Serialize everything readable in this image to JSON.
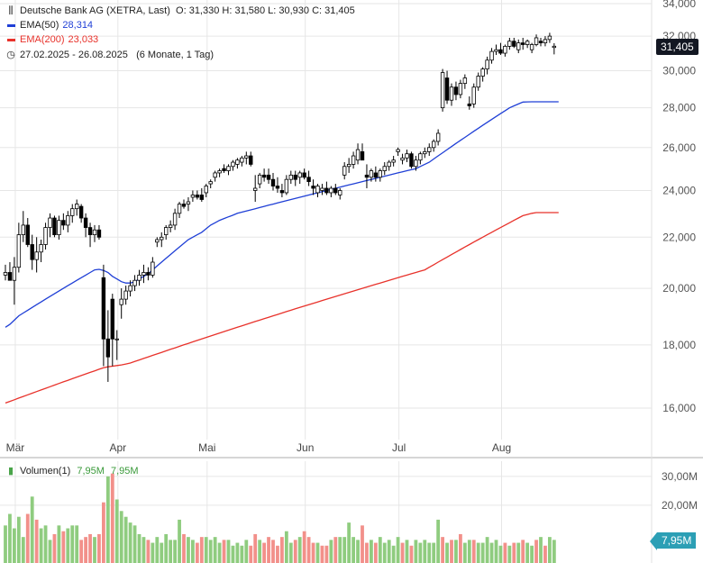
{
  "header": {
    "title": "Deutsche Bank AG (XETRA, Last)",
    "ohlc": "O: 31,330   H: 31,580   L: 30,930   C: 31,405",
    "ema50_label": "EMA(50)",
    "ema50_value": "28,314",
    "ema200_label": "EMA(200)",
    "ema200_value": "23,033",
    "range": "27.02.2025 - 26.08.2025",
    "range_note": "(6 Monate, 1 Tag)"
  },
  "volume_legend": {
    "label": "Volumen(1)",
    "value1": "7,95M",
    "value2": "7,95M"
  },
  "price_tag": "31,405",
  "volume_tag": "7,95M",
  "colors": {
    "ema50": "#1f3fd6",
    "ema200": "#e8322b",
    "vol_up": "#8fcc7f",
    "vol_down": "#f2908a",
    "candle": "#000000",
    "grid": "#e6e6e6"
  },
  "chart_data": {
    "type": "candlestick",
    "scale": "log",
    "price_ticks": [
      16000,
      18000,
      20000,
      22000,
      24000,
      26000,
      28000,
      30000,
      32000,
      34000
    ],
    "price_tick_labels": [
      "16,000",
      "18,000",
      "20,000",
      "22,000",
      "24,000",
      "26,000",
      "28,000",
      "30,000",
      "32,000",
      "34,000"
    ],
    "volume_ticks": [
      20,
      30
    ],
    "volume_tick_labels": [
      "20,00M",
      "30,00M"
    ],
    "months": [
      {
        "label": "Mär",
        "index": 1
      },
      {
        "label": "Apr",
        "index": 24
      },
      {
        "label": "Mai",
        "index": 44
      },
      {
        "label": "Jun",
        "index": 66
      },
      {
        "label": "Jul",
        "index": 87
      },
      {
        "label": "Aug",
        "index": 110
      }
    ],
    "candles": [
      [
        20.5,
        20.9,
        20.3,
        20.6
      ],
      [
        20.6,
        21.0,
        20.4,
        20.3
      ],
      [
        20.3,
        21.2,
        19.4,
        20.8
      ],
      [
        20.8,
        22.6,
        20.6,
        22.1
      ],
      [
        22.1,
        23.1,
        21.8,
        22.5
      ],
      [
        22.5,
        22.8,
        21.6,
        21.7
      ],
      [
        21.7,
        22.1,
        20.7,
        21.1
      ],
      [
        21.1,
        22.0,
        20.6,
        21.4
      ],
      [
        21.4,
        21.9,
        21.0,
        21.7
      ],
      [
        21.7,
        22.6,
        21.5,
        22.4
      ],
      [
        22.4,
        23.0,
        22.0,
        22.8
      ],
      [
        22.8,
        22.9,
        22.0,
        22.1
      ],
      [
        22.1,
        22.9,
        21.9,
        22.7
      ],
      [
        22.7,
        23.0,
        22.3,
        22.5
      ],
      [
        22.5,
        23.1,
        22.2,
        22.9
      ],
      [
        22.9,
        23.4,
        22.6,
        23.2
      ],
      [
        23.2,
        23.6,
        22.9,
        23.4
      ],
      [
        23.3,
        23.4,
        22.6,
        22.8
      ],
      [
        22.8,
        23.0,
        22.0,
        22.4
      ],
      [
        22.4,
        22.6,
        21.6,
        22.1
      ],
      [
        22.1,
        22.5,
        21.8,
        22.3
      ],
      [
        22.3,
        22.5,
        21.9,
        22.0
      ],
      [
        20.4,
        20.9,
        17.3,
        18.2
      ],
      [
        18.2,
        19.2,
        16.8,
        17.6
      ],
      [
        19.6,
        19.8,
        17.3,
        18.2
      ],
      [
        18.2,
        18.5,
        17.5,
        18.2
      ],
      [
        19.4,
        20.0,
        18.9,
        19.6
      ],
      [
        19.6,
        20.1,
        19.4,
        19.9
      ],
      [
        19.9,
        20.3,
        19.7,
        20.1
      ],
      [
        20.1,
        20.5,
        19.9,
        20.3
      ],
      [
        20.3,
        20.7,
        20.1,
        20.5
      ],
      [
        20.5,
        20.9,
        20.2,
        20.6
      ],
      [
        20.6,
        20.8,
        20.3,
        20.5
      ],
      [
        20.5,
        21.2,
        20.4,
        21.0
      ],
      [
        21.8,
        22.0,
        21.6,
        21.9
      ],
      [
        21.9,
        22.2,
        21.6,
        22.0
      ],
      [
        22.1,
        22.5,
        21.9,
        22.4
      ],
      [
        22.4,
        22.7,
        22.2,
        22.5
      ],
      [
        22.5,
        23.2,
        22.3,
        23.0
      ],
      [
        23.0,
        23.5,
        22.8,
        23.4
      ],
      [
        23.4,
        23.6,
        23.2,
        23.3
      ],
      [
        23.4,
        23.7,
        23.1,
        23.5
      ],
      [
        23.7,
        24.0,
        23.5,
        23.8
      ],
      [
        23.8,
        24.0,
        23.6,
        23.7
      ],
      [
        23.8,
        24.1,
        23.5,
        23.6
      ],
      [
        23.9,
        24.3,
        23.7,
        24.2
      ],
      [
        24.3,
        24.5,
        24.1,
        24.4
      ],
      [
        24.6,
        24.9,
        24.4,
        24.8
      ],
      [
        24.8,
        25.0,
        24.6,
        24.9
      ],
      [
        25.0,
        25.2,
        24.8,
        24.9
      ],
      [
        24.9,
        25.2,
        24.7,
        25.1
      ],
      [
        25.1,
        25.4,
        24.9,
        25.3
      ],
      [
        25.2,
        25.5,
        25.0,
        25.4
      ],
      [
        25.3,
        25.6,
        25.1,
        25.5
      ],
      [
        25.5,
        25.8,
        25.2,
        25.6
      ],
      [
        25.6,
        25.8,
        25.1,
        25.2
      ],
      [
        24.0,
        24.7,
        23.5,
        24.1
      ],
      [
        24.3,
        24.8,
        24.1,
        24.7
      ],
      [
        24.7,
        25.0,
        24.4,
        24.6
      ],
      [
        24.7,
        25.0,
        24.3,
        24.5
      ],
      [
        24.5,
        24.8,
        24.0,
        24.2
      ],
      [
        24.2,
        24.6,
        23.9,
        24.1
      ],
      [
        24.0,
        24.3,
        23.7,
        23.9
      ],
      [
        23.9,
        24.7,
        23.8,
        24.5
      ],
      [
        24.5,
        24.9,
        24.3,
        24.7
      ],
      [
        24.7,
        24.9,
        24.2,
        24.5
      ],
      [
        24.6,
        24.9,
        24.3,
        24.8
      ],
      [
        24.8,
        25.0,
        24.5,
        24.6
      ],
      [
        24.6,
        24.9,
        24.2,
        24.4
      ],
      [
        24.2,
        24.5,
        23.8,
        24.1
      ],
      [
        23.9,
        24.3,
        23.7,
        24.2
      ],
      [
        24.0,
        24.3,
        23.8,
        24.1
      ],
      [
        24.1,
        24.4,
        23.8,
        23.9
      ],
      [
        23.9,
        24.2,
        23.7,
        24.1
      ],
      [
        24.1,
        24.3,
        23.8,
        23.9
      ],
      [
        23.8,
        24.1,
        23.6,
        24.0
      ],
      [
        24.7,
        25.3,
        24.5,
        25.1
      ],
      [
        25.1,
        25.5,
        24.8,
        25.2
      ],
      [
        25.2,
        25.8,
        25.0,
        25.6
      ],
      [
        25.4,
        26.2,
        25.2,
        25.9
      ],
      [
        25.8,
        26.2,
        25.4,
        25.4
      ],
      [
        24.7,
        25.2,
        24.1,
        24.6
      ],
      [
        24.6,
        25.0,
        24.4,
        24.9
      ],
      [
        24.8,
        25.1,
        24.4,
        24.6
      ],
      [
        24.6,
        25.0,
        24.4,
        24.9
      ],
      [
        24.9,
        25.3,
        24.7,
        25.1
      ],
      [
        25.1,
        25.4,
        24.9,
        25.3
      ],
      [
        25.3,
        25.6,
        25.1,
        25.4
      ],
      [
        25.8,
        26.0,
        25.6,
        25.9
      ],
      [
        25.4,
        25.7,
        25.2,
        25.5
      ],
      [
        25.5,
        25.9,
        25.3,
        25.7
      ],
      [
        25.7,
        25.8,
        25.0,
        25.1
      ],
      [
        25.1,
        25.6,
        24.9,
        25.4
      ],
      [
        25.4,
        25.8,
        25.2,
        25.7
      ],
      [
        25.7,
        26.0,
        25.5,
        25.8
      ],
      [
        25.8,
        26.2,
        25.6,
        26.0
      ],
      [
        26.0,
        26.4,
        25.8,
        26.3
      ],
      [
        26.3,
        26.9,
        26.1,
        26.7
      ],
      [
        28.0,
        30.1,
        27.8,
        29.9
      ],
      [
        29.6,
        30.0,
        28.2,
        28.4
      ],
      [
        28.4,
        29.3,
        28.1,
        29.1
      ],
      [
        29.1,
        29.4,
        28.4,
        28.7
      ],
      [
        28.7,
        29.5,
        28.5,
        29.3
      ],
      [
        29.3,
        29.8,
        29.0,
        29.6
      ],
      [
        28.2,
        28.6,
        27.9,
        28.1
      ],
      [
        28.2,
        29.3,
        28.0,
        29.1
      ],
      [
        29.1,
        29.9,
        28.9,
        29.7
      ],
      [
        29.7,
        30.2,
        29.4,
        30.1
      ],
      [
        30.1,
        30.8,
        29.8,
        30.6
      ],
      [
        30.6,
        31.3,
        30.4,
        31.1
      ],
      [
        31.1,
        31.5,
        30.9,
        31.2
      ],
      [
        31.2,
        31.6,
        30.9,
        31.0
      ],
      [
        31.0,
        31.5,
        30.8,
        31.4
      ],
      [
        31.4,
        31.9,
        31.2,
        31.7
      ],
      [
        31.7,
        31.9,
        31.3,
        31.4
      ],
      [
        31.2,
        31.8,
        31.0,
        31.6
      ],
      [
        31.6,
        31.9,
        31.2,
        31.5
      ],
      [
        31.5,
        31.8,
        31.3,
        31.7
      ],
      [
        31.2,
        31.6,
        31.0,
        31.5
      ],
      [
        31.5,
        32.1,
        31.4,
        31.9
      ],
      [
        31.7,
        31.9,
        31.4,
        31.6
      ],
      [
        31.6,
        32.0,
        31.4,
        31.8
      ],
      [
        31.8,
        32.2,
        31.6,
        32.0
      ],
      [
        31.33,
        31.58,
        30.93,
        31.405
      ]
    ],
    "volumes": [
      13,
      17,
      12,
      16,
      9,
      17,
      23,
      15,
      12,
      13,
      8,
      10,
      13,
      11,
      12,
      13,
      13,
      8,
      9,
      10,
      9,
      10,
      21,
      30,
      31,
      22,
      18,
      16,
      14,
      13,
      10,
      9,
      8,
      7,
      9,
      7,
      10,
      8,
      8,
      15,
      10,
      9,
      8,
      7,
      9,
      9,
      8,
      9,
      7,
      8,
      8,
      6,
      7,
      6,
      8,
      6,
      10,
      8,
      7,
      9,
      8,
      6,
      9,
      11,
      7,
      8,
      9,
      11,
      9,
      7,
      7,
      6,
      6,
      8,
      9,
      9,
      9,
      14,
      9,
      8,
      13,
      7,
      8,
      7,
      9,
      7,
      8,
      6,
      9,
      7,
      8,
      6,
      8,
      7,
      8,
      7,
      7,
      15,
      9,
      7,
      8,
      8,
      10,
      7,
      8,
      8,
      7,
      7,
      9,
      7,
      8,
      6,
      7,
      6,
      7,
      7,
      8,
      7,
      6,
      8,
      9,
      6,
      9,
      8
    ],
    "volume_up": [
      1,
      1,
      1,
      1,
      1,
      0,
      1,
      0,
      1,
      1,
      1,
      0,
      1,
      0,
      1,
      1,
      1,
      0,
      0,
      0,
      1,
      0,
      0,
      1,
      0,
      1,
      1,
      1,
      1,
      1,
      1,
      1,
      0,
      1,
      1,
      1,
      1,
      1,
      1,
      1,
      0,
      1,
      1,
      0,
      0,
      1,
      1,
      1,
      1,
      0,
      1,
      1,
      1,
      1,
      1,
      0,
      0,
      1,
      0,
      0,
      0,
      0,
      0,
      1,
      1,
      0,
      1,
      0,
      0,
      0,
      1,
      0,
      0,
      1,
      0,
      1,
      1,
      1,
      1,
      1,
      0,
      0,
      1,
      0,
      1,
      1,
      1,
      1,
      1,
      0,
      1,
      0,
      1,
      1,
      1,
      1,
      1,
      1,
      0,
      1,
      0,
      1,
      0,
      1,
      1,
      0,
      1,
      1,
      1,
      1,
      1,
      1,
      0,
      1,
      0,
      1,
      0,
      1,
      1,
      0,
      1,
      0,
      1,
      1
    ],
    "ema50": [
      18.6,
      18.7,
      18.85,
      19.0,
      19.1,
      19.2,
      19.3,
      19.4,
      19.5,
      19.6,
      19.7,
      19.8,
      19.9,
      20.0,
      20.1,
      20.2,
      20.3,
      20.4,
      20.5,
      20.6,
      20.7,
      20.72,
      20.68,
      20.6,
      20.45,
      20.35,
      20.25,
      20.2,
      20.2,
      20.25,
      20.35,
      20.45,
      20.55,
      20.7,
      20.85,
      21.0,
      21.15,
      21.3,
      21.45,
      21.6,
      21.75,
      21.9,
      22.0,
      22.1,
      22.2,
      22.35,
      22.5,
      22.6,
      22.7,
      22.78,
      22.85,
      22.92,
      23.0,
      23.05,
      23.1,
      23.15,
      23.2,
      23.25,
      23.3,
      23.35,
      23.4,
      23.45,
      23.5,
      23.55,
      23.6,
      23.65,
      23.7,
      23.75,
      23.8,
      23.85,
      23.9,
      23.95,
      24.0,
      24.05,
      24.1,
      24.15,
      24.2,
      24.25,
      24.3,
      24.35,
      24.4,
      24.45,
      24.5,
      24.55,
      24.6,
      24.65,
      24.7,
      24.75,
      24.8,
      24.85,
      24.9,
      24.95,
      25.0,
      25.1,
      25.2,
      25.3,
      25.45,
      25.6,
      25.75,
      25.9,
      26.05,
      26.2,
      26.35,
      26.5,
      26.65,
      26.8,
      26.95,
      27.1,
      27.25,
      27.4,
      27.55,
      27.7,
      27.85,
      28.0,
      28.1,
      28.2,
      28.3,
      28.31,
      28.314,
      28.314,
      28.314,
      28.314,
      28.314,
      28.314,
      28.314
    ],
    "ema200": [
      16.15,
      16.2,
      16.25,
      16.3,
      16.35,
      16.4,
      16.45,
      16.5,
      16.55,
      16.6,
      16.65,
      16.7,
      16.75,
      16.8,
      16.85,
      16.9,
      16.95,
      17.0,
      17.05,
      17.1,
      17.15,
      17.2,
      17.25,
      17.28,
      17.3,
      17.32,
      17.34,
      17.37,
      17.4,
      17.45,
      17.5,
      17.55,
      17.6,
      17.65,
      17.7,
      17.75,
      17.8,
      17.85,
      17.9,
      17.95,
      18.0,
      18.05,
      18.1,
      18.15,
      18.2,
      18.25,
      18.3,
      18.35,
      18.4,
      18.45,
      18.5,
      18.55,
      18.6,
      18.65,
      18.7,
      18.75,
      18.8,
      18.85,
      18.9,
      18.95,
      19.0,
      19.05,
      19.1,
      19.15,
      19.2,
      19.25,
      19.3,
      19.35,
      19.4,
      19.45,
      19.5,
      19.55,
      19.6,
      19.65,
      19.7,
      19.75,
      19.8,
      19.85,
      19.9,
      19.95,
      20.0,
      20.05,
      20.1,
      20.15,
      20.2,
      20.25,
      20.3,
      20.35,
      20.4,
      20.45,
      20.5,
      20.55,
      20.6,
      20.65,
      20.7,
      20.8,
      20.9,
      21.0,
      21.1,
      21.2,
      21.3,
      21.4,
      21.5,
      21.6,
      21.7,
      21.8,
      21.9,
      22.0,
      22.1,
      22.2,
      22.3,
      22.4,
      22.5,
      22.6,
      22.7,
      22.8,
      22.9,
      22.95,
      23.0,
      23.033,
      23.033,
      23.033,
      23.033,
      23.033,
      23.033
    ]
  }
}
